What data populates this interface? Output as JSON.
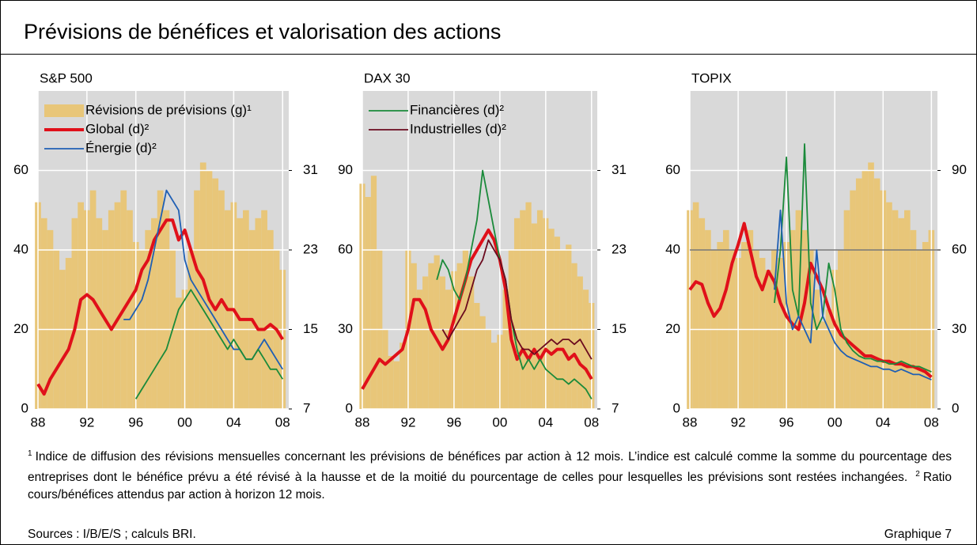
{
  "title": "Prévisions de bénéfices et valorisation des actions",
  "footnotes": [
    {
      "marker": "1",
      "text": "Indice de diffusion des révisions mensuelles concernant les prévisions de bénéfices par action à 12 mois. L’indice est calculé comme la somme du pourcentage des entreprises dont le bénéfice prévu a été révisé à la hausse et de la moitié du pourcentage de celles pour lesquelles les prévisions sont restées inchangées."
    },
    {
      "marker": "2",
      "text": "Ratio cours/bénéfices attendus par action à horizon 12 mois."
    }
  ],
  "sources": "Sources : I/B/E/S ; calculs BRI.",
  "label": "Graphique 7",
  "chart_data": [
    {
      "type": "combo",
      "title": "S&P 500",
      "legend": "upper left",
      "grid": true,
      "x": [
        1988,
        1988.5,
        1989,
        1989.5,
        1990,
        1990.5,
        1991,
        1991.5,
        1992,
        1992.5,
        1993,
        1993.5,
        1994,
        1994.5,
        1995,
        1995.5,
        1996,
        1996.5,
        1997,
        1997.5,
        1998,
        1998.5,
        1999,
        1999.5,
        2000,
        2000.5,
        2001,
        2001.5,
        2002,
        2002.5,
        2003,
        2003.5,
        2004,
        2004.5,
        2005,
        2005.5,
        2006,
        2006.5,
        2007,
        2007.5,
        2008
      ],
      "xlim": [
        1988,
        2008.5
      ],
      "xticks": [
        {
          "value": 1988,
          "label": "88"
        },
        {
          "value": 1992,
          "label": "92"
        },
        {
          "value": 1996,
          "label": "96"
        },
        {
          "value": 2000,
          "label": "00"
        },
        {
          "value": 2004,
          "label": "04"
        },
        {
          "value": 2008,
          "label": "08"
        }
      ],
      "ylim": [
        0,
        80
      ],
      "yticks": [
        0,
        20,
        40,
        60
      ],
      "y2lim": [
        7,
        39
      ],
      "y2ticks": [
        7,
        15,
        23,
        31
      ],
      "series": [
        {
          "name": "Révisions de prévisions (g)¹",
          "type": "bar",
          "color": "#e8c679",
          "values": [
            52,
            48,
            45,
            40,
            35,
            38,
            48,
            52,
            50,
            55,
            48,
            45,
            50,
            52,
            55,
            50,
            42,
            40,
            45,
            48,
            55,
            50,
            40,
            28,
            30,
            40,
            55,
            62,
            60,
            58,
            55,
            50,
            52,
            48,
            50,
            45,
            48,
            50,
            45,
            40,
            35
          ]
        },
        {
          "name": "Global (d)²",
          "type": "line",
          "axis": "y2",
          "color": "#e0101a",
          "width": 4,
          "values": [
            9.5,
            8.5,
            10,
            11,
            12,
            13,
            15,
            18,
            18.5,
            18,
            17,
            16,
            15,
            16,
            17,
            18,
            19,
            21,
            22,
            24,
            25,
            26,
            26,
            24,
            25,
            23,
            21,
            20,
            18,
            17,
            18,
            17,
            17,
            16,
            16,
            16,
            15,
            15,
            15.5,
            15,
            14
          ]
        },
        {
          "name": "Énergie (d)²",
          "type": "line",
          "axis": "y2",
          "color": "#1f5fb4",
          "width": 1.8,
          "values": [
            null,
            null,
            null,
            null,
            null,
            null,
            null,
            null,
            null,
            null,
            null,
            null,
            null,
            null,
            16,
            16,
            17,
            18,
            20,
            23,
            26,
            29,
            28,
            27,
            22,
            20,
            19,
            18,
            17,
            16,
            15,
            14,
            13,
            13,
            12,
            12,
            13,
            14,
            13,
            12,
            11
          ]
        },
        {
          "type": "line",
          "axis": "y2",
          "color": "#1a8a3a",
          "width": 1.8,
          "values": [
            null,
            null,
            null,
            null,
            null,
            null,
            null,
            null,
            null,
            null,
            null,
            null,
            null,
            null,
            null,
            null,
            8,
            9,
            10,
            11,
            12,
            13,
            15,
            17,
            18,
            19,
            18,
            17,
            16,
            15,
            14,
            13,
            14,
            13,
            12,
            12,
            13,
            12,
            11,
            11,
            10
          ]
        }
      ]
    },
    {
      "type": "combo",
      "title": "DAX 30",
      "legend": "upper left",
      "grid": true,
      "x": [
        1988,
        1988.5,
        1989,
        1989.5,
        1990,
        1990.5,
        1991,
        1991.5,
        1992,
        1992.5,
        1993,
        1993.5,
        1994,
        1994.5,
        1995,
        1995.5,
        1996,
        1996.5,
        1997,
        1997.5,
        1998,
        1998.5,
        1999,
        1999.5,
        2000,
        2000.5,
        2001,
        2001.5,
        2002,
        2002.5,
        2003,
        2003.5,
        2004,
        2004.5,
        2005,
        2005.5,
        2006,
        2006.5,
        2007,
        2007.5,
        2008
      ],
      "xlim": [
        1988,
        2008.5
      ],
      "xticks": [
        {
          "value": 1988,
          "label": "88"
        },
        {
          "value": 1992,
          "label": "92"
        },
        {
          "value": 1996,
          "label": "96"
        },
        {
          "value": 2000,
          "label": "00"
        },
        {
          "value": 2004,
          "label": "04"
        },
        {
          "value": 2008,
          "label": "08"
        }
      ],
      "ylim": [
        0,
        120
      ],
      "yticks": [
        0,
        30,
        60,
        90
      ],
      "y2lim": [
        7,
        39
      ],
      "y2ticks": [
        7,
        15,
        23,
        31
      ],
      "series": [
        {
          "type": "bar",
          "color": "#e8c679",
          "values": [
            85,
            80,
            88,
            60,
            30,
            20,
            18,
            25,
            60,
            55,
            45,
            50,
            55,
            58,
            50,
            45,
            52,
            55,
            60,
            50,
            40,
            35,
            30,
            25,
            28,
            45,
            60,
            72,
            75,
            78,
            70,
            75,
            72,
            68,
            65,
            60,
            62,
            55,
            50,
            45,
            40
          ]
        },
        {
          "type": "line",
          "axis": "y2",
          "color": "#e0101a",
          "width": 4,
          "values": [
            9,
            10,
            11,
            12,
            11.5,
            12,
            12.5,
            13,
            15,
            18,
            18,
            17,
            15,
            14,
            13,
            14,
            16,
            18,
            20,
            22,
            23,
            24,
            25,
            24,
            22,
            19,
            14,
            12,
            13,
            12,
            13,
            12,
            13,
            12.5,
            13,
            13,
            12,
            12.5,
            11.5,
            11,
            10
          ]
        },
        {
          "name": "Financières (d)²",
          "type": "line",
          "axis": "y2",
          "color": "#1a8a3a",
          "width": 1.8,
          "values": [
            null,
            null,
            null,
            null,
            null,
            null,
            null,
            null,
            null,
            null,
            null,
            null,
            null,
            20,
            22,
            21,
            19,
            18,
            20,
            23,
            26,
            31,
            28,
            25,
            22,
            20,
            16,
            13,
            11,
            12,
            11,
            12,
            11,
            10.5,
            10,
            10,
            9.5,
            10,
            9.5,
            9,
            8
          ]
        },
        {
          "name": "Industrielles (d)²",
          "type": "line",
          "axis": "y2",
          "color": "#6b0a1e",
          "width": 1.8,
          "values": [
            null,
            null,
            null,
            null,
            null,
            null,
            null,
            null,
            null,
            null,
            null,
            null,
            null,
            null,
            15,
            14,
            15,
            16,
            17,
            19,
            21,
            22,
            24,
            23,
            22,
            20,
            16,
            14,
            13,
            13,
            12.5,
            13,
            13.5,
            14,
            13.5,
            14,
            14,
            13.5,
            14,
            13,
            12
          ]
        }
      ]
    },
    {
      "type": "combo",
      "title": "TOPIX",
      "grid": true,
      "hline": 40,
      "x": [
        1988,
        1988.5,
        1989,
        1989.5,
        1990,
        1990.5,
        1991,
        1991.5,
        1992,
        1992.5,
        1993,
        1993.5,
        1994,
        1994.5,
        1995,
        1995.5,
        1996,
        1996.5,
        1997,
        1997.5,
        1998,
        1998.5,
        1999,
        1999.5,
        2000,
        2000.5,
        2001,
        2001.5,
        2002,
        2002.5,
        2003,
        2003.5,
        2004,
        2004.5,
        2005,
        2005.5,
        2006,
        2006.5,
        2007,
        2007.5,
        2008
      ],
      "xlim": [
        1988,
        2008.5
      ],
      "xticks": [
        {
          "value": 1988,
          "label": "88"
        },
        {
          "value": 1992,
          "label": "92"
        },
        {
          "value": 1996,
          "label": "96"
        },
        {
          "value": 2000,
          "label": "00"
        },
        {
          "value": 2004,
          "label": "04"
        },
        {
          "value": 2008,
          "label": "08"
        }
      ],
      "ylim": [
        0,
        80
      ],
      "yticks": [
        0,
        20,
        40,
        60
      ],
      "y2lim": [
        0,
        120
      ],
      "y2ticks": [
        0,
        30,
        60,
        90
      ],
      "series": [
        {
          "type": "bar",
          "color": "#e8c679",
          "values": [
            50,
            52,
            48,
            45,
            40,
            42,
            45,
            40,
            38,
            42,
            45,
            40,
            38,
            35,
            40,
            38,
            42,
            45,
            50,
            45,
            40,
            30,
            22,
            25,
            35,
            40,
            50,
            55,
            58,
            60,
            62,
            58,
            55,
            52,
            50,
            48,
            50,
            45,
            40,
            42,
            45
          ]
        },
        {
          "type": "line",
          "axis": "y2",
          "color": "#e0101a",
          "width": 4,
          "values": [
            45,
            48,
            47,
            40,
            35,
            38,
            45,
            55,
            62,
            70,
            60,
            50,
            45,
            52,
            48,
            40,
            35,
            32,
            30,
            40,
            55,
            50,
            45,
            38,
            32,
            28,
            26,
            24,
            22,
            20,
            20,
            19,
            18,
            18,
            17,
            17,
            16,
            16,
            15,
            14,
            12
          ]
        },
        {
          "type": "line",
          "axis": "y2",
          "color": "#1a8a3a",
          "width": 1.8,
          "values": [
            null,
            null,
            null,
            null,
            null,
            null,
            null,
            null,
            null,
            null,
            null,
            null,
            null,
            null,
            40,
            60,
            95,
            45,
            35,
            100,
            40,
            30,
            35,
            55,
            45,
            30,
            25,
            22,
            20,
            19,
            19,
            18,
            18,
            17,
            17,
            18,
            17,
            16,
            16,
            15,
            14
          ]
        },
        {
          "type": "line",
          "axis": "y2",
          "color": "#1f5fb4",
          "width": 1.8,
          "values": [
            null,
            null,
            null,
            null,
            null,
            null,
            null,
            null,
            null,
            null,
            null,
            null,
            null,
            null,
            45,
            75,
            40,
            30,
            35,
            30,
            25,
            60,
            35,
            30,
            25,
            22,
            20,
            19,
            18,
            17,
            16,
            16,
            15,
            15,
            14,
            15,
            14,
            13,
            13,
            12,
            11
          ]
        }
      ]
    }
  ]
}
